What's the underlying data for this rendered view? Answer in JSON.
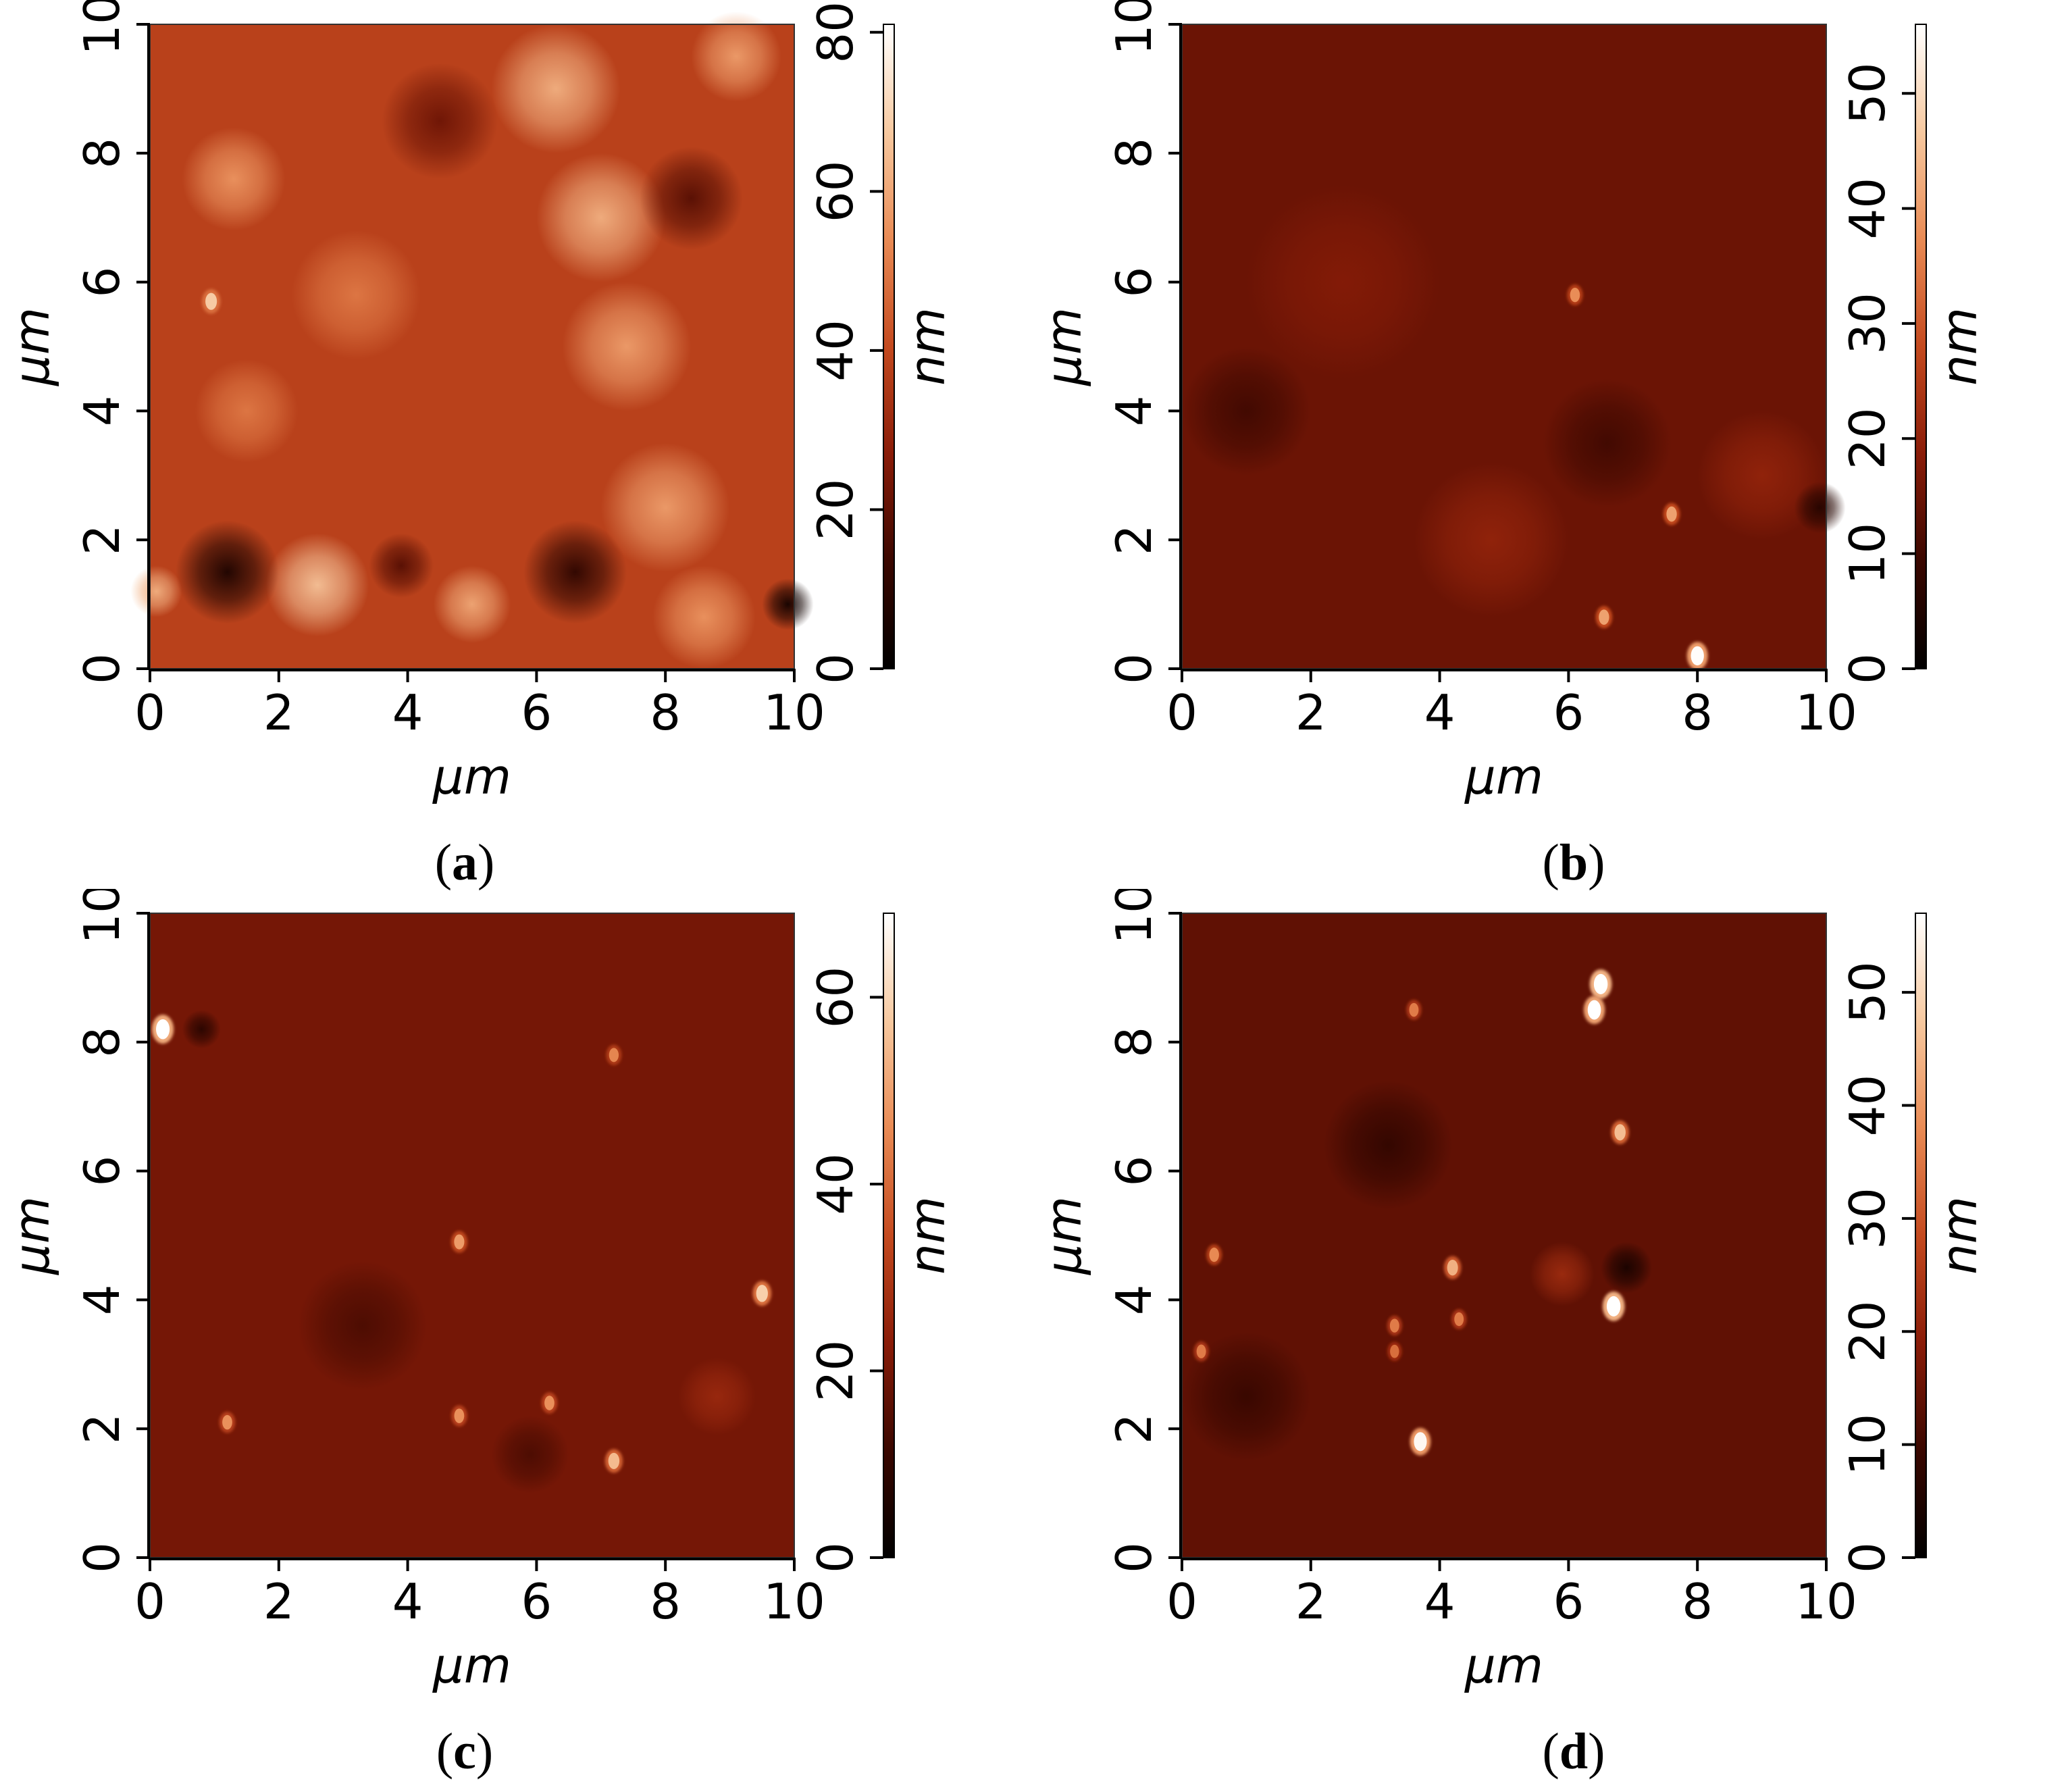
{
  "chart_data": [
    {
      "type": "heatmap",
      "panel_label": "a",
      "xlabel": "μm",
      "ylabel": "μm",
      "colorbar_label": "nm",
      "x_ticks": [
        "0",
        "2",
        "4",
        "6",
        "8",
        "10"
      ],
      "y_ticks": [
        "0",
        "2",
        "4",
        "6",
        "8",
        "10"
      ],
      "colorbar_ticks": [
        "0",
        "20",
        "40",
        "60",
        "80"
      ],
      "xlim": [
        0,
        10
      ],
      "ylim": [
        0,
        10
      ],
      "zlim": [
        0,
        81
      ],
      "base_height_nm": 38,
      "colormap": [
        "#000000",
        "#3a0700",
        "#8a1c08",
        "#c44a1f",
        "#e98b55",
        "#f7c9a0",
        "#ffffff"
      ],
      "features": [
        {
          "kind": "bright_region",
          "x": 1.3,
          "y": 7.6,
          "z": 56,
          "r": 0.8
        },
        {
          "kind": "bright_region",
          "x": 3.2,
          "y": 5.8,
          "z": 50,
          "r": 1.0
        },
        {
          "kind": "bright_region",
          "x": 1.5,
          "y": 4.0,
          "z": 50,
          "r": 0.8
        },
        {
          "kind": "bright_region",
          "x": 6.3,
          "y": 9.0,
          "z": 62,
          "r": 1.0
        },
        {
          "kind": "bright_region",
          "x": 7.0,
          "y": 7.0,
          "z": 62,
          "r": 1.0
        },
        {
          "kind": "bright_region",
          "x": 7.4,
          "y": 5.0,
          "z": 58,
          "r": 1.0
        },
        {
          "kind": "bright_region",
          "x": 8.0,
          "y": 2.5,
          "z": 58,
          "r": 1.0
        },
        {
          "kind": "bright_region",
          "x": 8.6,
          "y": 0.8,
          "z": 56,
          "r": 0.8
        },
        {
          "kind": "bright_region",
          "x": 9.1,
          "y": 9.5,
          "z": 58,
          "r": 0.7
        },
        {
          "kind": "bright_region",
          "x": 2.6,
          "y": 1.3,
          "z": 66,
          "r": 0.8
        },
        {
          "kind": "bright_region",
          "x": 5.0,
          "y": 1.0,
          "z": 60,
          "r": 0.6
        },
        {
          "kind": "bright_region",
          "x": 0.1,
          "y": 1.2,
          "z": 62,
          "r": 0.4
        },
        {
          "kind": "dark_region",
          "x": 1.2,
          "y": 1.5,
          "z": 6,
          "r": 0.8
        },
        {
          "kind": "dark_region",
          "x": 6.6,
          "y": 1.5,
          "z": 10,
          "r": 0.8
        },
        {
          "kind": "dark_region",
          "x": 9.9,
          "y": 1.0,
          "z": 4,
          "r": 0.4
        },
        {
          "kind": "dark_region",
          "x": 8.4,
          "y": 7.3,
          "z": 18,
          "r": 0.8
        },
        {
          "kind": "dark_region",
          "x": 4.5,
          "y": 8.5,
          "z": 22,
          "r": 0.9
        },
        {
          "kind": "dark_region",
          "x": 3.9,
          "y": 1.6,
          "z": 18,
          "r": 0.5
        },
        {
          "kind": "particle",
          "x": 0.95,
          "y": 5.7,
          "z": 60
        }
      ]
    },
    {
      "type": "heatmap",
      "panel_label": "b",
      "xlabel": "μm",
      "ylabel": "μm",
      "colorbar_label": "nm",
      "x_ticks": [
        "0",
        "2",
        "4",
        "6",
        "8",
        "10"
      ],
      "y_ticks": [
        "0",
        "2",
        "4",
        "6",
        "8",
        "10"
      ],
      "colorbar_ticks": [
        "0",
        "10",
        "20",
        "30",
        "40",
        "50"
      ],
      "xlim": [
        0,
        10
      ],
      "ylim": [
        0,
        10
      ],
      "zlim": [
        0,
        56
      ],
      "base_height_nm": 15,
      "colormap": [
        "#000000",
        "#3a0700",
        "#8a1c08",
        "#c44a1f",
        "#e98b55",
        "#f7c9a0",
        "#ffffff"
      ],
      "features": [
        {
          "kind": "bright_region",
          "x": 4.8,
          "y": 2.0,
          "z": 20,
          "r": 1.2
        },
        {
          "kind": "bright_region",
          "x": 9.0,
          "y": 3.0,
          "z": 20,
          "r": 1.0
        },
        {
          "kind": "bright_region",
          "x": 2.5,
          "y": 6.0,
          "z": 18,
          "r": 1.5
        },
        {
          "kind": "dark_region",
          "x": 6.6,
          "y": 3.5,
          "z": 10,
          "r": 1.0
        },
        {
          "kind": "dark_region",
          "x": 1.0,
          "y": 4.0,
          "z": 10,
          "r": 1.0
        },
        {
          "kind": "dark_region",
          "x": 9.9,
          "y": 2.5,
          "z": 6,
          "r": 0.4
        },
        {
          "kind": "particle",
          "x": 6.1,
          "y": 5.8,
          "z": 32
        },
        {
          "kind": "particle",
          "x": 7.6,
          "y": 2.4,
          "z": 35
        },
        {
          "kind": "particle",
          "x": 6.55,
          "y": 0.8,
          "z": 35
        },
        {
          "kind": "particle",
          "x": 8.0,
          "y": 0.2,
          "z": 50
        }
      ]
    },
    {
      "type": "heatmap",
      "panel_label": "c",
      "xlabel": "μm",
      "ylabel": "μm",
      "colorbar_label": "nm",
      "x_ticks": [
        "0",
        "2",
        "4",
        "6",
        "8",
        "10"
      ],
      "y_ticks": [
        "0",
        "2",
        "4",
        "6",
        "8",
        "10"
      ],
      "colorbar_ticks": [
        "0",
        "20",
        "40",
        "60"
      ],
      "xlim": [
        0,
        10
      ],
      "ylim": [
        0,
        10
      ],
      "zlim": [
        0,
        69
      ],
      "base_height_nm": 20,
      "colormap": [
        "#000000",
        "#3a0700",
        "#8a1c08",
        "#c44a1f",
        "#e98b55",
        "#f7c9a0",
        "#ffffff"
      ],
      "features": [
        {
          "kind": "dark_region",
          "x": 3.3,
          "y": 3.6,
          "z": 14,
          "r": 1.0
        },
        {
          "kind": "dark_region",
          "x": 0.8,
          "y": 8.2,
          "z": 8,
          "r": 0.3
        },
        {
          "kind": "dark_region",
          "x": 5.9,
          "y": 1.6,
          "z": 14,
          "r": 0.6
        },
        {
          "kind": "bright_region",
          "x": 8.8,
          "y": 2.5,
          "z": 26,
          "r": 0.6
        },
        {
          "kind": "particle",
          "x": 0.2,
          "y": 8.2,
          "z": 65
        },
        {
          "kind": "particle",
          "x": 9.5,
          "y": 4.1,
          "z": 52
        },
        {
          "kind": "particle",
          "x": 7.2,
          "y": 1.5,
          "z": 48
        },
        {
          "kind": "particle",
          "x": 4.8,
          "y": 4.9,
          "z": 42
        },
        {
          "kind": "particle",
          "x": 1.2,
          "y": 2.1,
          "z": 40
        },
        {
          "kind": "particle",
          "x": 4.8,
          "y": 2.2,
          "z": 40
        },
        {
          "kind": "particle",
          "x": 6.2,
          "y": 2.4,
          "z": 40
        },
        {
          "kind": "particle",
          "x": 7.2,
          "y": 7.8,
          "z": 38
        }
      ]
    },
    {
      "type": "heatmap",
      "panel_label": "d",
      "xlabel": "μm",
      "ylabel": "μm",
      "colorbar_label": "nm",
      "x_ticks": [
        "0",
        "2",
        "4",
        "6",
        "8",
        "10"
      ],
      "y_ticks": [
        "0",
        "2",
        "4",
        "6",
        "8",
        "10"
      ],
      "colorbar_ticks": [
        "0",
        "10",
        "20",
        "30",
        "40",
        "50"
      ],
      "xlim": [
        0,
        10
      ],
      "ylim": [
        0,
        10
      ],
      "zlim": [
        0,
        57
      ],
      "base_height_nm": 14,
      "colormap": [
        "#000000",
        "#3a0700",
        "#8a1c08",
        "#c44a1f",
        "#e98b55",
        "#f7c9a0",
        "#ffffff"
      ],
      "features": [
        {
          "kind": "dark_region",
          "x": 3.2,
          "y": 6.4,
          "z": 8,
          "r": 1.0
        },
        {
          "kind": "dark_region",
          "x": 6.9,
          "y": 4.5,
          "z": 4,
          "r": 0.4
        },
        {
          "kind": "dark_region",
          "x": 1.0,
          "y": 2.5,
          "z": 9,
          "r": 1.0
        },
        {
          "kind": "bright_region",
          "x": 5.9,
          "y": 4.4,
          "z": 22,
          "r": 0.5
        },
        {
          "kind": "particle",
          "x": 6.5,
          "y": 8.9,
          "z": 55
        },
        {
          "kind": "particle",
          "x": 6.4,
          "y": 8.5,
          "z": 52
        },
        {
          "kind": "particle",
          "x": 6.7,
          "y": 3.9,
          "z": 55
        },
        {
          "kind": "particle",
          "x": 3.7,
          "y": 1.8,
          "z": 50
        },
        {
          "kind": "particle",
          "x": 6.8,
          "y": 6.6,
          "z": 40
        },
        {
          "kind": "particle",
          "x": 4.2,
          "y": 4.5,
          "z": 38
        },
        {
          "kind": "particle",
          "x": 3.6,
          "y": 8.5,
          "z": 30
        },
        {
          "kind": "particle",
          "x": 0.5,
          "y": 4.7,
          "z": 32
        },
        {
          "kind": "particle",
          "x": 3.3,
          "y": 3.6,
          "z": 30
        },
        {
          "kind": "particle",
          "x": 4.3,
          "y": 3.7,
          "z": 30
        },
        {
          "kind": "particle",
          "x": 0.3,
          "y": 3.2,
          "z": 30
        },
        {
          "kind": "particle",
          "x": 3.3,
          "y": 3.2,
          "z": 28
        }
      ]
    }
  ]
}
